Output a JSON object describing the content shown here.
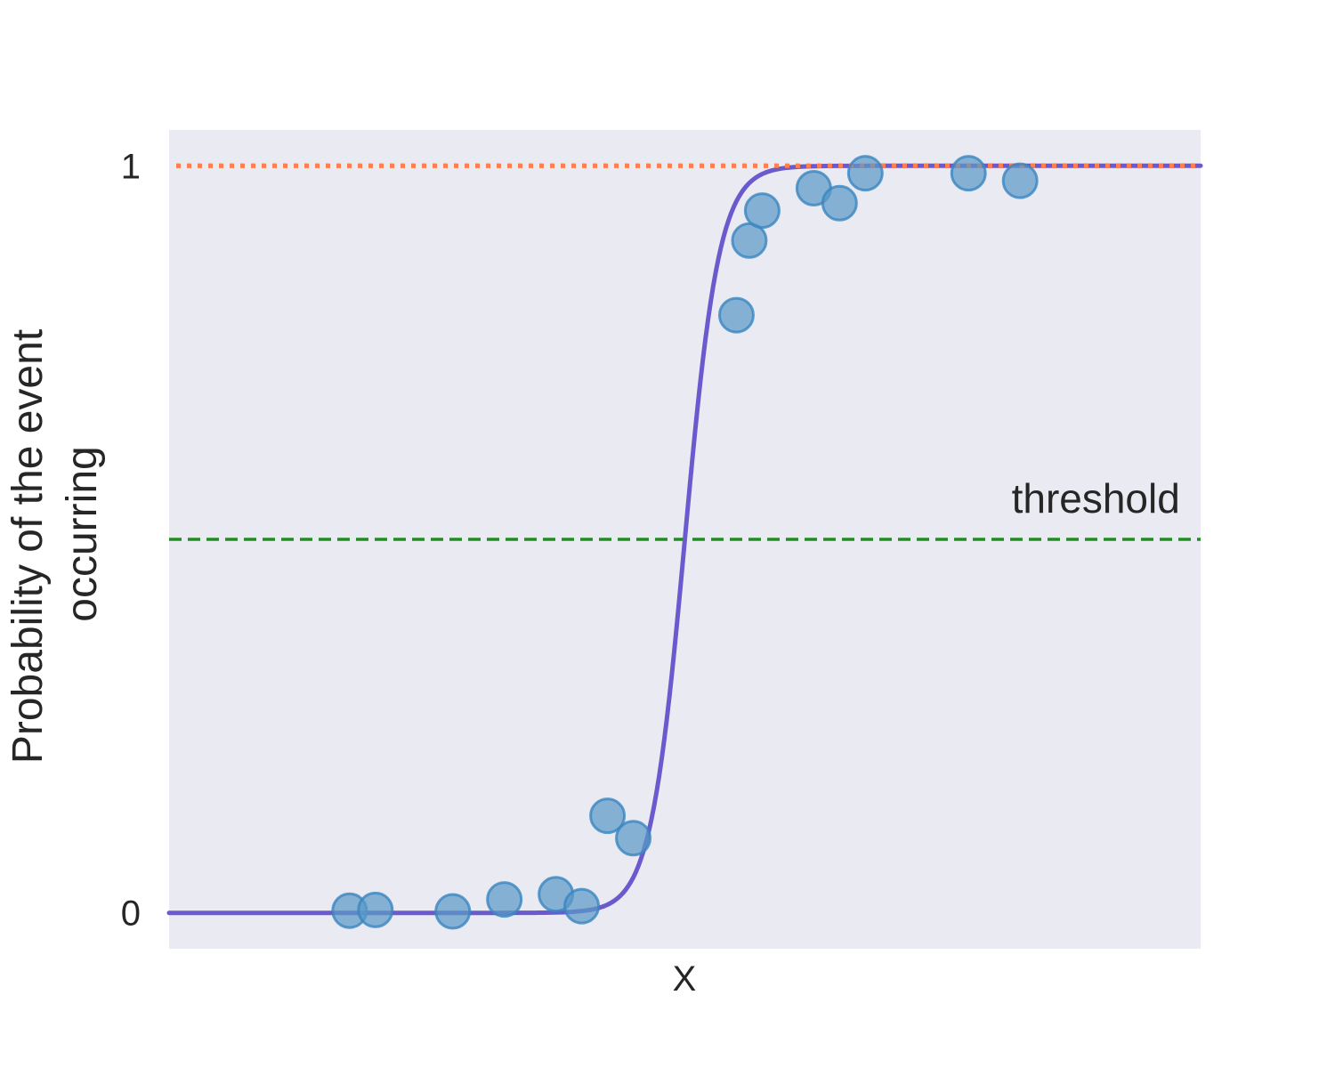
{
  "chart_data": {
    "type": "scatter",
    "title": "",
    "xlabel": "X",
    "ylabel_lines": [
      "Probability of the event",
      "occurring"
    ],
    "xlim": [
      -10,
      10
    ],
    "ylim": [
      -0.048,
      1.048
    ],
    "yticks": [
      {
        "value": 0,
        "label": "0"
      },
      {
        "value": 1,
        "label": "1"
      }
    ],
    "xticks": [],
    "grid": false,
    "legend": "none",
    "series": [
      {
        "name": "observations",
        "kind": "scatter",
        "x": [
          -6.5,
          -6.0,
          -4.5,
          -3.5,
          -2.5,
          -2.0,
          -1.5,
          -1.0,
          1.0,
          1.25,
          1.5,
          2.5,
          3.0,
          3.5,
          5.5,
          6.5
        ],
        "y": [
          0.003,
          0.004,
          0.002,
          0.018,
          0.025,
          0.009,
          0.13,
          0.1,
          0.8,
          0.9,
          0.94,
          0.97,
          0.95,
          0.99,
          0.99,
          0.98
        ]
      },
      {
        "name": "logistic fit",
        "kind": "sigmoid",
        "midpoint": 0,
        "steepness": 3.0,
        "x_range": [
          -10,
          10
        ]
      },
      {
        "name": "upper bound",
        "kind": "hline",
        "y": 1,
        "style": "dotted"
      },
      {
        "name": "threshold",
        "kind": "hline",
        "y": 0.5,
        "style": "dashed"
      }
    ],
    "annotations": [
      {
        "text": "threshold",
        "x": 9.6,
        "y": 0.555,
        "align": "right"
      }
    ],
    "colors": {
      "plot_background": "#eaeaf2",
      "points_fill": "#5b9ac6",
      "points_stroke": "#3a86c0",
      "curve": "#6a5acd",
      "upper_line": "#ff7f50",
      "threshold_line": "#228b22",
      "text": "#262626"
    }
  }
}
